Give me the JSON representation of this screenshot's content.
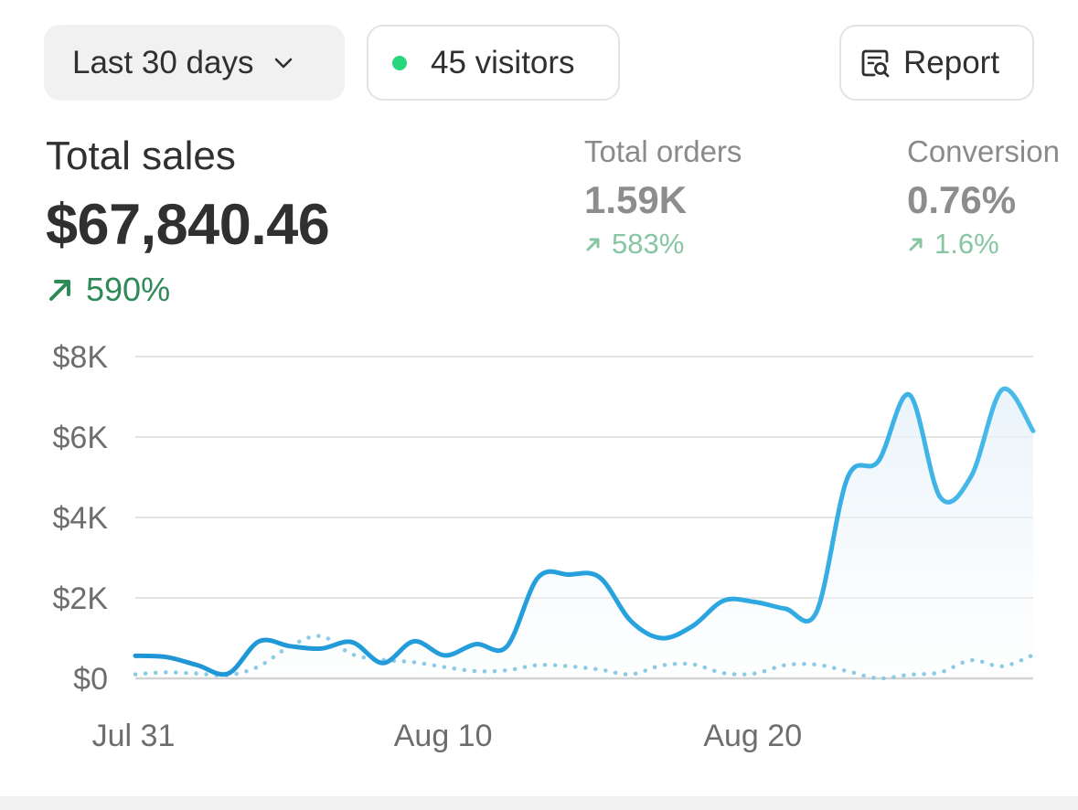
{
  "toolbar": {
    "date_range_label": "Last 30 days",
    "visitors_label": "45 visitors",
    "report_label": "Report"
  },
  "metrics": {
    "total_sales": {
      "label": "Total sales",
      "value": "$67,840.46",
      "delta": "590%"
    },
    "total_orders": {
      "label": "Total orders",
      "value": "1.59K",
      "delta": "583%"
    },
    "conversion": {
      "label": "Conversion",
      "value": "0.76%",
      "delta": "1.6%"
    }
  },
  "colors": {
    "primary_series": "#2aa6e0",
    "comparison_series": "#8ccbe6",
    "positive": "#2e8a57",
    "live_dot": "#29d67c"
  },
  "chart_data": {
    "type": "line",
    "title": "",
    "xlabel": "",
    "ylabel": "",
    "ylim": [
      0,
      8000
    ],
    "y_ticks": [
      "$0",
      "$2K",
      "$4K",
      "$6K",
      "$8K"
    ],
    "y_tick_values": [
      0,
      2000,
      4000,
      6000,
      8000
    ],
    "x_ticks": [
      "Jul 31",
      "Aug 10",
      "Aug 20"
    ],
    "x_tick_indices": [
      0,
      10,
      20
    ],
    "x": [
      "Jul 31",
      "Aug 1",
      "Aug 2",
      "Aug 3",
      "Aug 4",
      "Aug 5",
      "Aug 6",
      "Aug 7",
      "Aug 8",
      "Aug 9",
      "Aug 10",
      "Aug 11",
      "Aug 12",
      "Aug 13",
      "Aug 14",
      "Aug 15",
      "Aug 16",
      "Aug 17",
      "Aug 18",
      "Aug 19",
      "Aug 20",
      "Aug 21",
      "Aug 22",
      "Aug 23",
      "Aug 24",
      "Aug 25",
      "Aug 26",
      "Aug 27",
      "Aug 28",
      "Aug 29"
    ],
    "grid": true,
    "series": [
      {
        "style": "solid",
        "values": [
          560,
          530,
          330,
          120,
          920,
          800,
          740,
          900,
          380,
          920,
          570,
          850,
          790,
          2500,
          2580,
          2510,
          1430,
          1000,
          1300,
          1930,
          1900,
          1730,
          1650,
          4980,
          5400,
          7050,
          4500,
          5030,
          7180,
          6150
        ]
      },
      {
        "style": "dotted",
        "values": [
          100,
          150,
          120,
          80,
          300,
          800,
          1050,
          600,
          460,
          400,
          280,
          180,
          200,
          330,
          300,
          220,
          100,
          320,
          350,
          130,
          120,
          330,
          340,
          180,
          0,
          90,
          150,
          450,
          300,
          580
        ]
      }
    ]
  }
}
